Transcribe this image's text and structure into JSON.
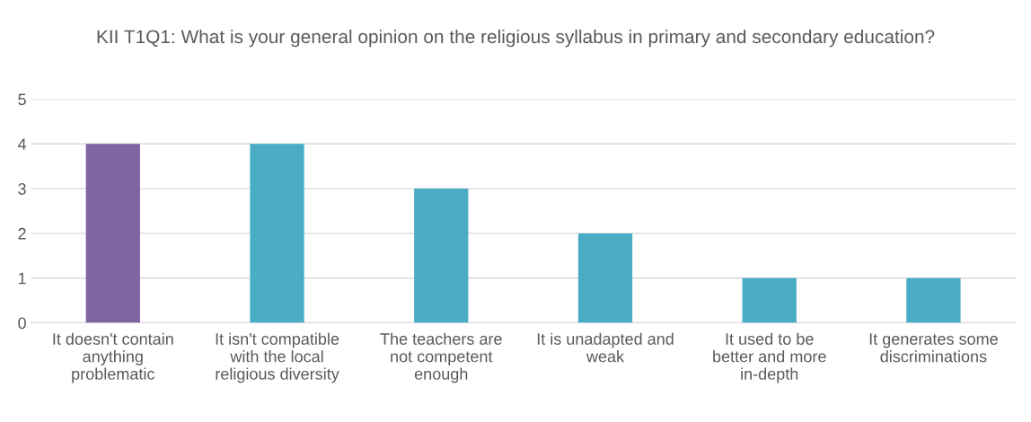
{
  "chart_data": {
    "type": "bar",
    "title": "KII T1Q1: What is your general opinion on the religious syllabus in primary and secondary education?",
    "categories": [
      "It doesn't contain anything problematic",
      "It isn't compatible with the local religious diversity",
      "The teachers are not competent enough",
      "It is unadapted and weak",
      "It used to be better and more in-depth",
      "It generates some discriminations"
    ],
    "values": [
      4,
      4,
      3,
      2,
      1,
      1
    ],
    "colors": [
      "#8064a2",
      "#4bacc6",
      "#4bacc6",
      "#4bacc6",
      "#4bacc6",
      "#4bacc6"
    ],
    "ylim": [
      0,
      5
    ],
    "yticks": [
      0,
      1,
      2,
      3,
      4,
      5
    ],
    "grid": "y"
  }
}
